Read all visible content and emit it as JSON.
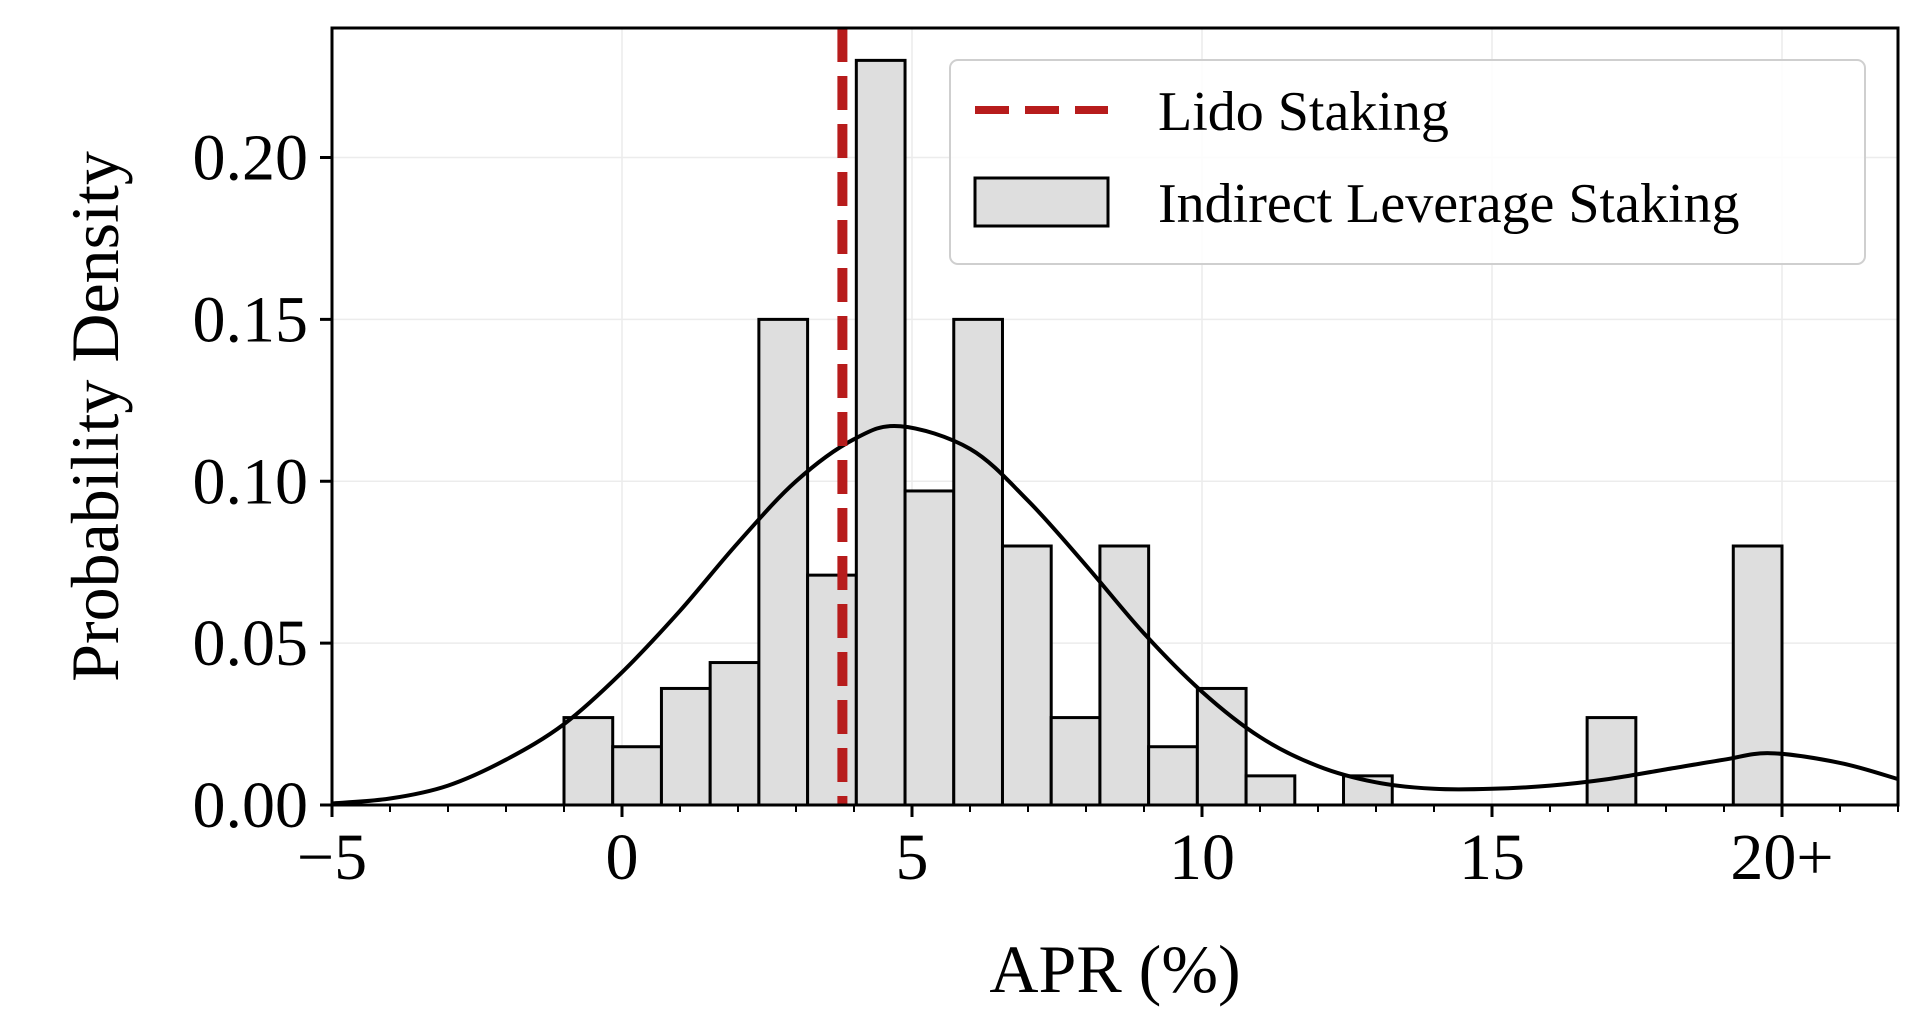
{
  "chart_data": {
    "type": "bar",
    "subtype": "histogram",
    "title": "",
    "xlabel": "APR (%)",
    "ylabel": "Probability Density",
    "xlim": [
      -5,
      22
    ],
    "ylim": [
      0,
      0.24
    ],
    "xticks": [
      {
        "value": -5,
        "label": "−5"
      },
      {
        "value": 0,
        "label": "0"
      },
      {
        "value": 5,
        "label": "5"
      },
      {
        "value": 10,
        "label": "10"
      },
      {
        "value": 15,
        "label": "15"
      },
      {
        "value": 20,
        "label": "20+"
      }
    ],
    "yticks": [
      {
        "value": 0.0,
        "label": "0.00"
      },
      {
        "value": 0.05,
        "label": "0.05"
      },
      {
        "value": 0.1,
        "label": "0.10"
      },
      {
        "value": 0.15,
        "label": "0.15"
      },
      {
        "value": 0.2,
        "label": "0.20"
      }
    ],
    "grid": true,
    "legend_position": "top-right",
    "bins": [
      {
        "start": -1.0,
        "end": -0.16,
        "density": 0.027
      },
      {
        "start": -0.16,
        "end": 0.68,
        "density": 0.018
      },
      {
        "start": 0.68,
        "end": 1.52,
        "density": 0.036
      },
      {
        "start": 1.52,
        "end": 2.36,
        "density": 0.044
      },
      {
        "start": 2.36,
        "end": 3.2,
        "density": 0.15
      },
      {
        "start": 3.2,
        "end": 4.04,
        "density": 0.071
      },
      {
        "start": 4.04,
        "end": 4.88,
        "density": 0.23
      },
      {
        "start": 4.88,
        "end": 5.72,
        "density": 0.097
      },
      {
        "start": 5.72,
        "end": 6.56,
        "density": 0.15
      },
      {
        "start": 6.56,
        "end": 7.4,
        "density": 0.08
      },
      {
        "start": 7.4,
        "end": 8.24,
        "density": 0.027
      },
      {
        "start": 8.24,
        "end": 9.08,
        "density": 0.08
      },
      {
        "start": 9.08,
        "end": 9.92,
        "density": 0.018
      },
      {
        "start": 9.92,
        "end": 10.76,
        "density": 0.036
      },
      {
        "start": 10.76,
        "end": 11.6,
        "density": 0.009
      },
      {
        "start": 12.44,
        "end": 13.28,
        "density": 0.009
      },
      {
        "start": 16.64,
        "end": 17.48,
        "density": 0.027
      },
      {
        "start": 19.16,
        "end": 20.0,
        "density": 0.08
      }
    ],
    "kde": {
      "x": [
        -5,
        -4,
        -3,
        -2,
        -1,
        0,
        1,
        2,
        3,
        4,
        4.8,
        6,
        7,
        8,
        9,
        10,
        11,
        12,
        13,
        14,
        15,
        16,
        17,
        18,
        19,
        19.8,
        21,
        22
      ],
      "y": [
        0.0005,
        0.002,
        0.006,
        0.014,
        0.025,
        0.041,
        0.06,
        0.081,
        0.1,
        0.113,
        0.117,
        0.11,
        0.094,
        0.074,
        0.053,
        0.035,
        0.021,
        0.012,
        0.007,
        0.005,
        0.005,
        0.006,
        0.008,
        0.011,
        0.014,
        0.016,
        0.013,
        0.008
      ]
    },
    "reference_line": {
      "name": "Lido Staking",
      "x": 3.8,
      "color": "#b71c1c",
      "style": "dashed"
    },
    "series": [
      {
        "name": "Lido Staking",
        "type": "vline",
        "color": "#b71c1c"
      },
      {
        "name": "Indirect Leverage Staking",
        "type": "histogram",
        "color": "#dedede",
        "edge_color": "#000000"
      }
    ]
  }
}
